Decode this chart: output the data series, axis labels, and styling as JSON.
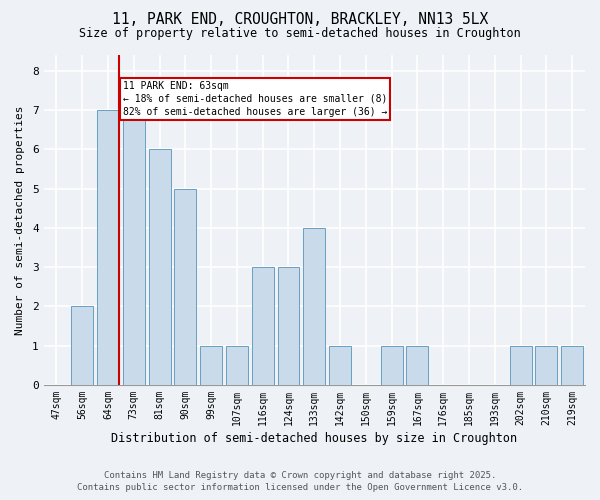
{
  "title1": "11, PARK END, CROUGHTON, BRACKLEY, NN13 5LX",
  "title2": "Size of property relative to semi-detached houses in Croughton",
  "xlabel": "Distribution of semi-detached houses by size in Croughton",
  "ylabel": "Number of semi-detached properties",
  "categories": [
    "47sqm",
    "56sqm",
    "64sqm",
    "73sqm",
    "81sqm",
    "90sqm",
    "99sqm",
    "107sqm",
    "116sqm",
    "124sqm",
    "133sqm",
    "142sqm",
    "150sqm",
    "159sqm",
    "167sqm",
    "176sqm",
    "185sqm",
    "193sqm",
    "202sqm",
    "210sqm",
    "219sqm"
  ],
  "values": [
    0,
    2,
    7,
    7,
    6,
    5,
    1,
    1,
    3,
    3,
    4,
    1,
    0,
    1,
    1,
    0,
    0,
    0,
    1,
    1,
    1
  ],
  "bar_color": "#c9daea",
  "bar_edgecolor": "#6a9fc0",
  "redline_index": 2,
  "annotation_title": "11 PARK END: 63sqm",
  "annotation_line1": "← 18% of semi-detached houses are smaller (8)",
  "annotation_line2": "82% of semi-detached houses are larger (36) →",
  "annotation_box_color": "#ffffff",
  "annotation_box_edgecolor": "#cc0000",
  "redline_color": "#cc0000",
  "ylim": [
    0,
    8.4
  ],
  "yticks": [
    0,
    1,
    2,
    3,
    4,
    5,
    6,
    7,
    8
  ],
  "footer1": "Contains HM Land Registry data © Crown copyright and database right 2025.",
  "footer2": "Contains public sector information licensed under the Open Government Licence v3.0.",
  "background_color": "#eef2f7"
}
